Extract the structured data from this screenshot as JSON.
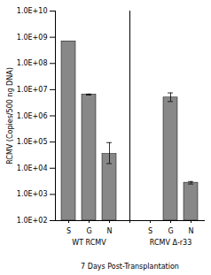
{
  "chart_data": {
    "type": "bar",
    "xlabel": "7 Days Post-Transplantation",
    "ylabel": "RCMV (Copies/500 ng DNA)",
    "color": "#888888",
    "log": "y",
    "grid": false,
    "ylim": [
      100,
      10000000000
    ],
    "yticks": [
      {
        "value": 100,
        "label": "1.0E+02"
      },
      {
        "value": 1000,
        "label": "1.0E+03"
      },
      {
        "value": 10000,
        "label": "1.0E+04"
      },
      {
        "value": 100000,
        "label": "1.0E+05"
      },
      {
        "value": 1000000,
        "label": "1.0E+06"
      },
      {
        "value": 10000000,
        "label": "1.0E+07"
      },
      {
        "value": 100000000,
        "label": "1.0E+08"
      },
      {
        "value": 1000000000,
        "label": "1.0E+09"
      },
      {
        "value": 10000000000,
        "label": "1.0E+10"
      }
    ],
    "groups": [
      {
        "label": "WT RCMV",
        "categories": [
          "S",
          "G",
          "N"
        ],
        "values": [
          700000000.0,
          6500000.0,
          35000.0
        ],
        "error_low": [
          0,
          300000.0,
          20000.0
        ],
        "error_high": [
          0,
          300000.0,
          60000.0
        ]
      },
      {
        "label": "RCMV Δ-r33",
        "categories": [
          "S",
          "G",
          "N"
        ],
        "values": [
          0,
          5000000.0,
          2800.0
        ],
        "error_low": [
          0,
          1500000.0,
          300.0
        ],
        "error_high": [
          0,
          2500000.0,
          300.0
        ]
      }
    ]
  }
}
